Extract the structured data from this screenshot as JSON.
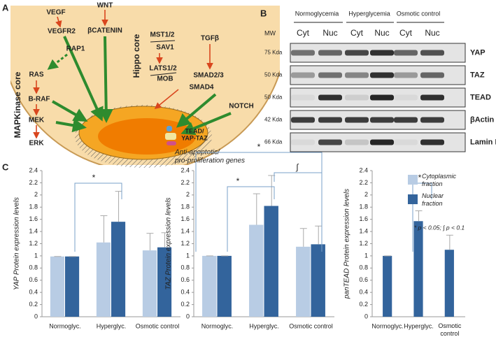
{
  "panels": [
    "A",
    "B",
    "C"
  ],
  "diagram": {
    "labels": [
      "VEGF",
      "VEGFR2",
      "WNT",
      "βCATENIN",
      "MST1/2",
      "SAV1",
      "TGFβ",
      "RAP1",
      "RAS",
      "B-RAF",
      "MEK",
      "ERK",
      "LATS1/2",
      "MOB",
      "SMAD2/3",
      "SMAD4",
      "NOTCH"
    ],
    "hippo_core": "Hippo core",
    "mapk_core": "MAPKinase core",
    "complex": [
      "TEAD/",
      "YAP-TAZ"
    ],
    "genes": [
      "Anti-apoptotic/",
      "pro-proliferation genes"
    ]
  },
  "blot": {
    "conditions": [
      "Normoglycemia",
      "Hyperglycemia",
      "Osmotic control"
    ],
    "fractions": [
      "Cyt",
      "Nuc",
      "Cyt",
      "Nuc",
      "Cyt",
      "Nuc"
    ],
    "mw_header": "MW",
    "rows": [
      {
        "mw": "75 Kda",
        "protein": "YAP"
      },
      {
        "mw": "50 Kda",
        "protein": "TAZ"
      },
      {
        "mw": "50 Kda",
        "protein": "TEAD"
      },
      {
        "mw": "42 Kda",
        "protein": "βActin"
      },
      {
        "mw": "66 Kda",
        "protein": "Lamin B1"
      }
    ]
  },
  "chart_data": [
    {
      "type": "bar",
      "ylabel": "YAP Protein expression levels",
      "categories": [
        "Normoglyc.",
        "Hyperglyc.",
        "Osmotic control"
      ],
      "series": [
        {
          "name": "Cytoplasmic fraction",
          "color": "#b8cce4",
          "values": [
            0.99,
            1.22,
            1.09
          ],
          "errors": [
            0,
            0.44,
            0.28
          ]
        },
        {
          "name": "Nuclear fraction",
          "color": "#33649c",
          "values": [
            0.99,
            1.56,
            1.14
          ],
          "errors": [
            0,
            0.5,
            0.24
          ]
        }
      ],
      "ylim": [
        0,
        2.4
      ],
      "yticks": [
        0,
        0.2,
        0.4,
        0.6,
        0.8,
        1,
        1.2,
        1.4,
        1.6,
        1.8,
        2,
        2.2,
        2.4
      ],
      "annotations": [
        "*"
      ]
    },
    {
      "type": "bar",
      "ylabel": "TAZ Protein expression levels",
      "categories": [
        "Normoglyc.",
        "Hyperglyc.",
        "Osmotic control"
      ],
      "series": [
        {
          "name": "Cytoplasmic fraction",
          "color": "#b8cce4",
          "values": [
            1.0,
            1.51,
            1.15
          ],
          "errors": [
            0,
            0.51,
            0.3
          ]
        },
        {
          "name": "Nuclear fraction",
          "color": "#33649c",
          "values": [
            1.0,
            1.82,
            1.19
          ],
          "errors": [
            0,
            0.5,
            0.3
          ]
        }
      ],
      "ylim": [
        0,
        2.4
      ],
      "yticks": [
        0,
        0.2,
        0.4,
        0.6,
        0.8,
        1,
        1.2,
        1.4,
        1.6,
        1.8,
        2,
        2.2,
        2.4
      ],
      "annotations": [
        "*",
        "*",
        "∫"
      ]
    },
    {
      "type": "bar",
      "ylabel": "panTEAD Protein expression levels",
      "categories": [
        "Normoglyc.",
        "Hyperglyc.",
        "Osmotic control"
      ],
      "series": [
        {
          "name": "Nuclear fraction",
          "color": "#33649c",
          "values": [
            1.0,
            1.57,
            1.1
          ],
          "errors": [
            0,
            0.17,
            0.24
          ]
        }
      ],
      "ylim": [
        0,
        2.4
      ],
      "yticks": [
        0,
        0.2,
        0.4,
        0.6,
        0.8,
        1,
        1.2,
        1.4,
        1.6,
        1.8,
        2,
        2.2,
        2.4
      ],
      "annotations": [
        "*"
      ]
    }
  ],
  "footnote": "* p < 0.05; ∫ p < 0.1"
}
